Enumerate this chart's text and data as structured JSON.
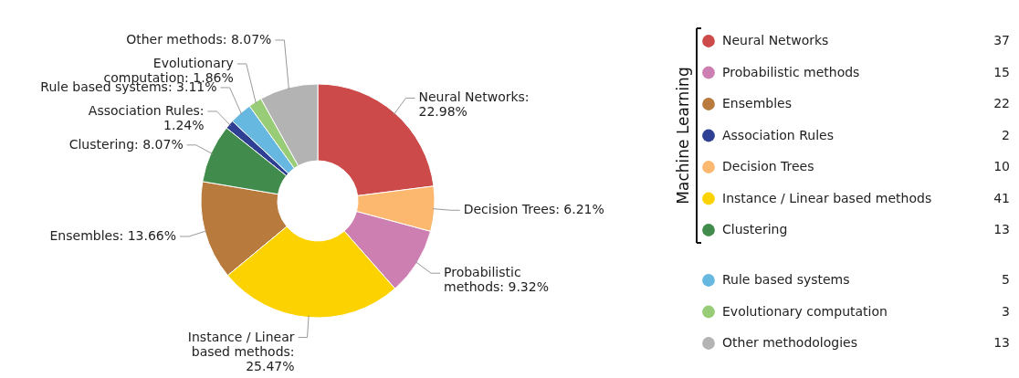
{
  "chart_data": {
    "type": "donut",
    "categories": [
      "Neural Networks",
      "Probabilistic methods",
      "Ensembles",
      "Association Rules",
      "Decision Trees",
      "Instance / Linear based methods",
      "Clustering",
      "Rule based systems",
      "Evolutionary computation",
      "Other methodologies"
    ],
    "values": [
      22.98,
      9.32,
      13.66,
      1.24,
      6.21,
      25.47,
      8.07,
      3.11,
      1.86,
      8.07
    ],
    "colors": [
      "#cc4a4a",
      "#cc7fb0",
      "#b87a3d",
      "#2e3f94",
      "#fdb870",
      "#fcd300",
      "#418c4d",
      "#66b8e0",
      "#99cc77",
      "#b3b3b3"
    ],
    "value_labels": [
      "Neural Networks:\n22.98%",
      "Probabilistic\nmethods: 9.32%",
      "Ensembles: 13.66%",
      "Association Rules:\n1.24%",
      "Decision Trees: 6.21%",
      "Instance / Linear\nbased methods:\n25.47%",
      "Clustering: 8.07%",
      "Rule based systems: 3.11%",
      "Evolutionary\ncomputation: 1.86%",
      "Other methods: 8.07%"
    ],
    "annotations": [
      "Machine Learning",
      "37",
      "15",
      "22",
      "2",
      "10",
      "41",
      "13",
      "5",
      "3",
      "13"
    ],
    "legend": "right"
  }
}
